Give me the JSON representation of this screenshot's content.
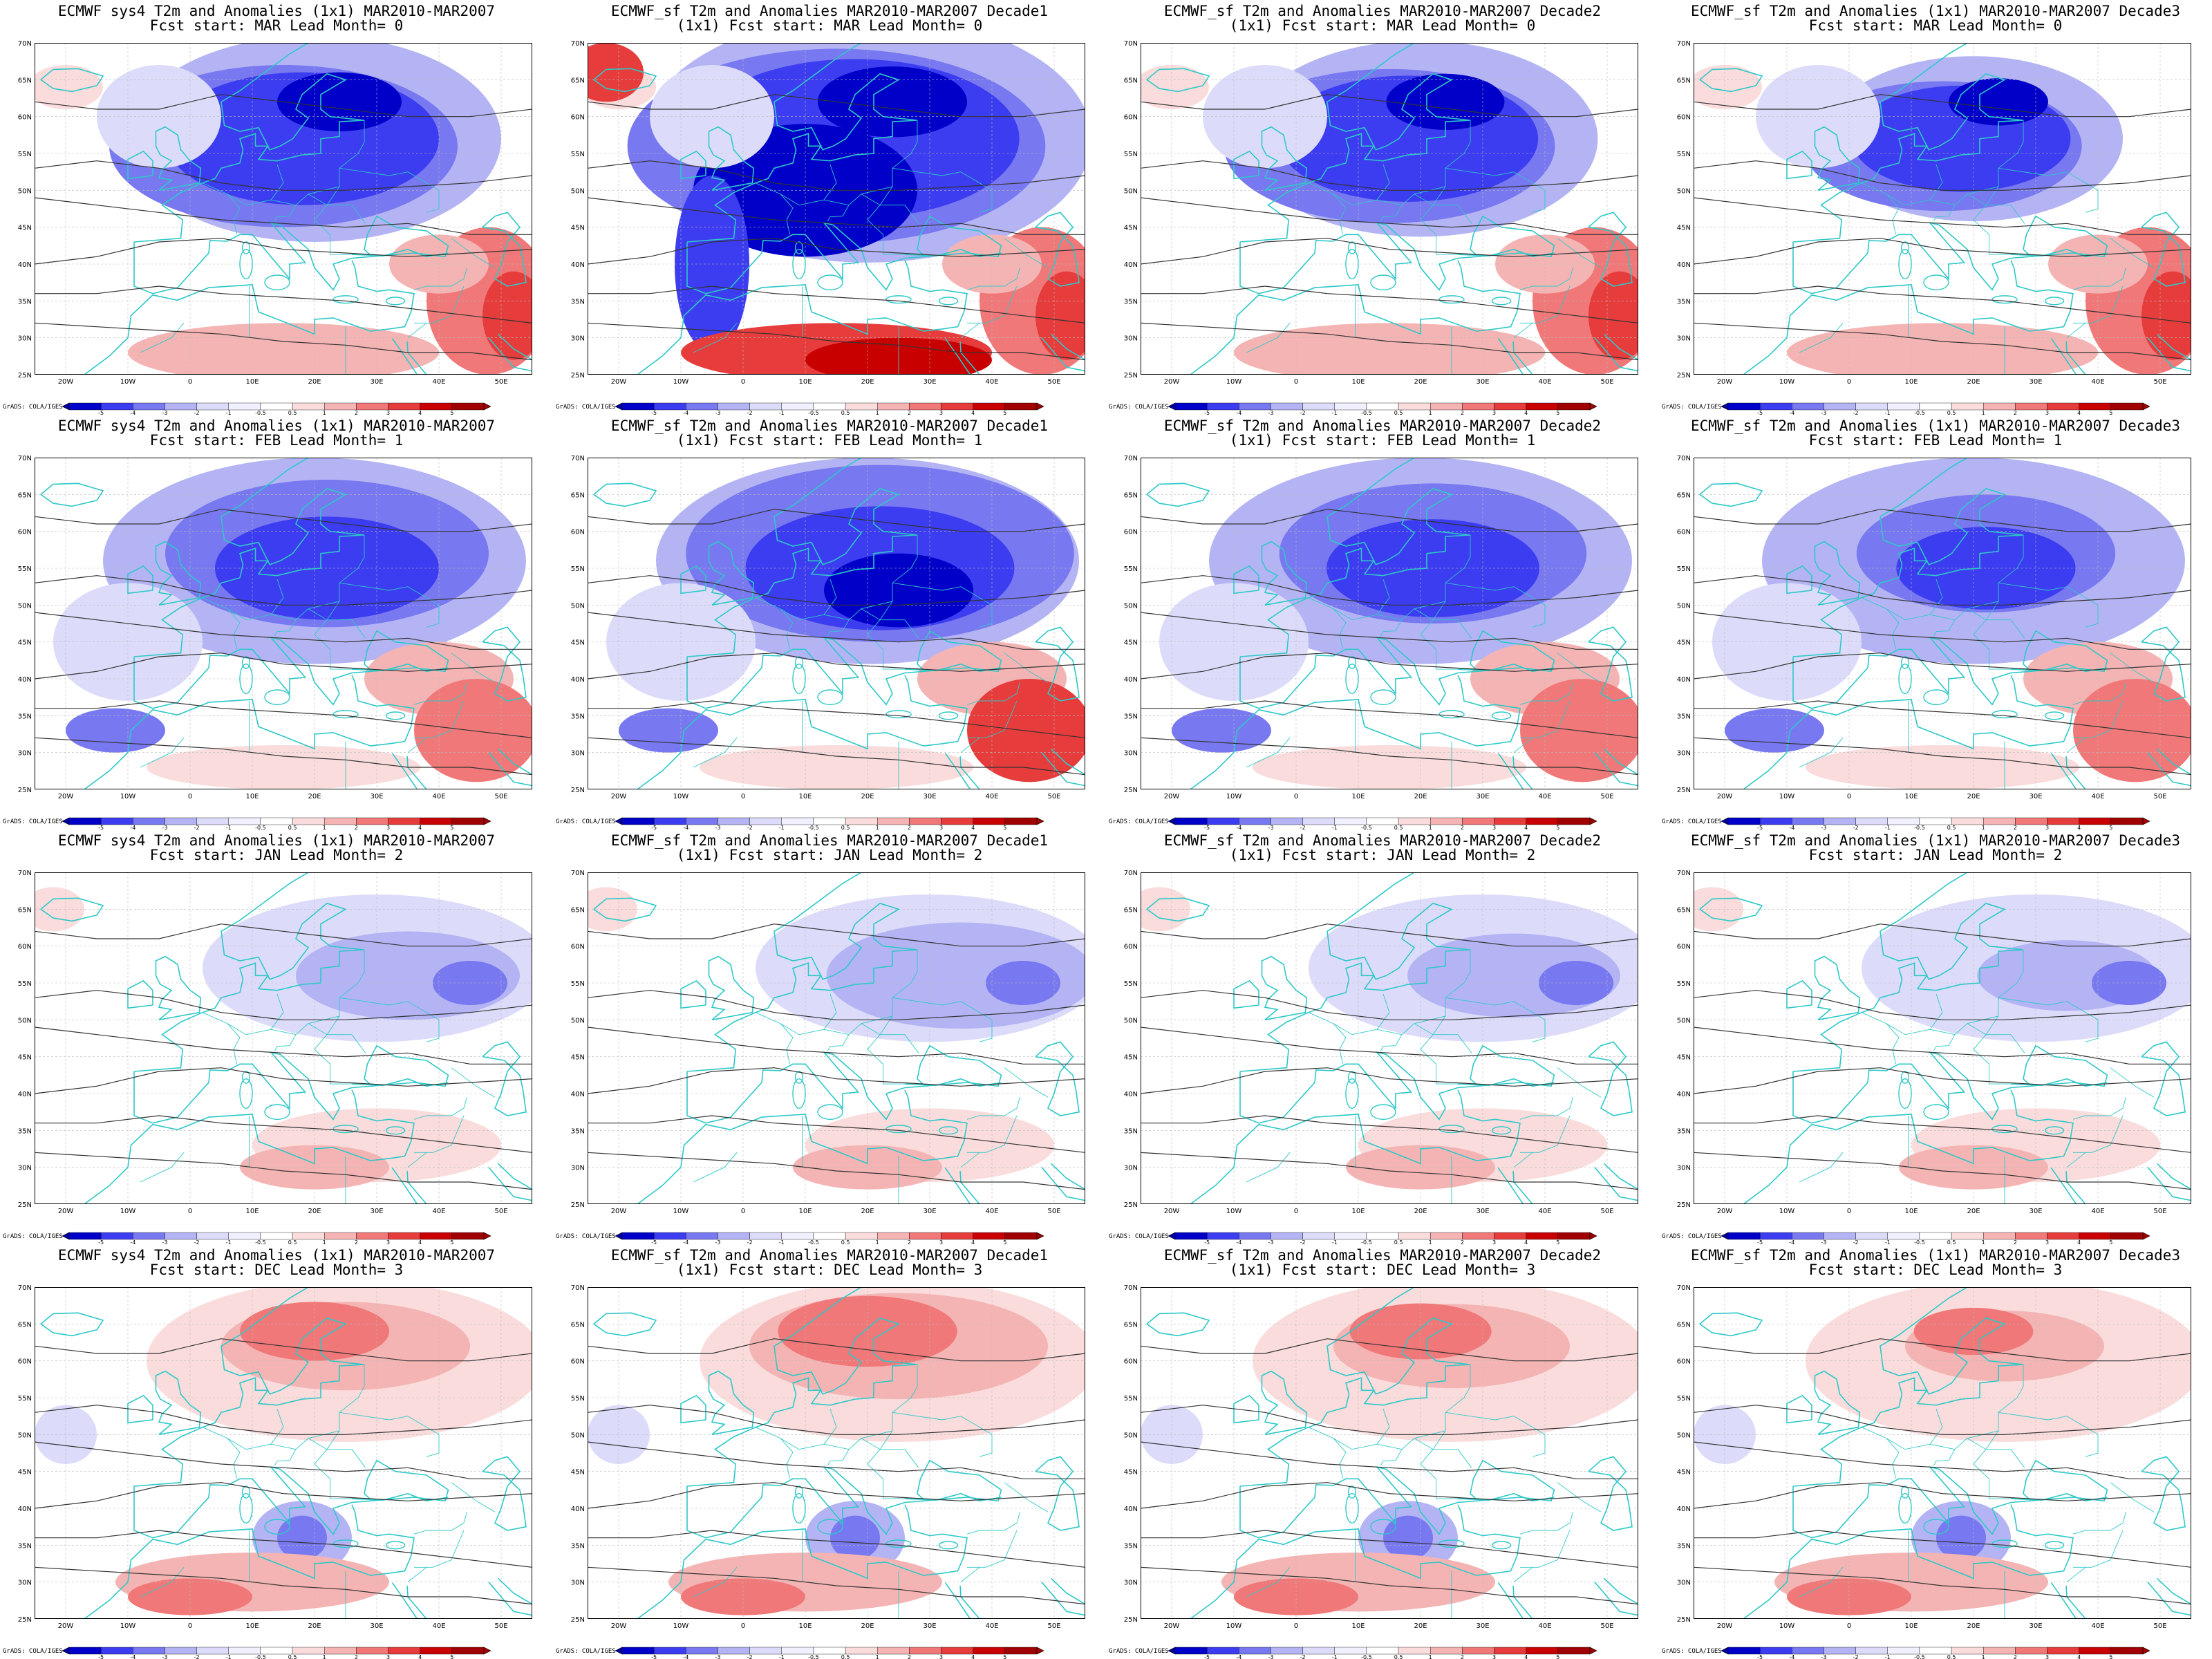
{
  "colors": {
    "strong_cold": "#0000c8",
    "cold": "#3c3cf0",
    "mid_cold": "#7878f0",
    "light_cold": "#b4b4f5",
    "faint_cold": "#dcdcfa",
    "faint_warm": "#fadcdc",
    "light_warm": "#f5b4b4",
    "mid_warm": "#f07878",
    "warm": "#e63c3c",
    "strong_warm": "#c80000",
    "coast": "#2ec8c8",
    "contour": "#333333"
  },
  "colorbar": {
    "labels": [
      "-5",
      "-4",
      "-3",
      "-2",
      "-1",
      "-0.5",
      "0.5",
      "1",
      "2",
      "3",
      "4",
      "5"
    ],
    "credit": "GrADS: COLA/IGES"
  },
  "axes": {
    "lon_ticks": [
      "20W",
      "10W",
      "0",
      "10E",
      "20E",
      "30E",
      "40E",
      "50E"
    ],
    "lat_ticks": [
      "70N",
      "65N",
      "60N",
      "55N",
      "50N",
      "45N",
      "40N",
      "35N",
      "30N",
      "25N"
    ]
  },
  "panels": [
    {
      "title1": "ECMWF sys4 T2m and Anomalies (1x1) MAR2010-MAR2007",
      "title2": "Fcst start: MAR  Lead Month= 0",
      "pattern": 0
    },
    {
      "title1": "ECMWF_sf T2m and Anomalies MAR2010-MAR2007 Decade1",
      "title2": "(1x1) Fcst start: MAR  Lead Month= 0",
      "pattern": 0
    },
    {
      "title1": "ECMWF_sf T2m and Anomalies MAR2010-MAR2007 Decade2",
      "title2": "(1x1) Fcst start: MAR  Lead Month= 0",
      "pattern": 0
    },
    {
      "title1": "ECMWF_sf T2m and Anomalies (1x1) MAR2010-MAR2007 Decade3",
      "title2": "Fcst start: MAR  Lead Month= 0",
      "pattern": 0
    },
    {
      "title1": "ECMWF sys4 T2m and Anomalies (1x1) MAR2010-MAR2007",
      "title2": "Fcst start: FEB  Lead Month= 1",
      "pattern": 1
    },
    {
      "title1": "ECMWF_sf T2m and Anomalies MAR2010-MAR2007 Decade1",
      "title2": "(1x1) Fcst start: FEB  Lead Month= 1",
      "pattern": 1
    },
    {
      "title1": "ECMWF_sf T2m and Anomalies MAR2010-MAR2007 Decade2",
      "title2": "(1x1) Fcst start: FEB  Lead Month= 1",
      "pattern": 1
    },
    {
      "title1": "ECMWF_sf T2m and Anomalies (1x1) MAR2010-MAR2007 Decade3",
      "title2": "Fcst start: FEB  Lead Month= 1",
      "pattern": 1
    },
    {
      "title1": "ECMWF sys4 T2m and Anomalies (1x1) MAR2010-MAR2007",
      "title2": "Fcst start: JAN  Lead Month= 2",
      "pattern": 2
    },
    {
      "title1": "ECMWF_sf T2m and Anomalies MAR2010-MAR2007 Decade1",
      "title2": "(1x1) Fcst start: JAN  Lead Month= 2",
      "pattern": 2
    },
    {
      "title1": "ECMWF_sf T2m and Anomalies MAR2010-MAR2007 Decade2",
      "title2": "(1x1) Fcst start: JAN  Lead Month= 2",
      "pattern": 2
    },
    {
      "title1": "ECMWF_sf T2m and Anomalies (1x1) MAR2010-MAR2007 Decade3",
      "title2": "Fcst start: JAN  Lead Month= 2",
      "pattern": 2
    },
    {
      "title1": "ECMWF sys4 T2m and Anomalies (1x1) MAR2010-MAR2007",
      "title2": "Fcst start: DEC  Lead Month= 3",
      "pattern": 3
    },
    {
      "title1": "ECMWF_sf T2m and Anomalies MAR2010-MAR2007 Decade1",
      "title2": "(1x1) Fcst start: DEC  Lead Month= 3",
      "pattern": 3
    },
    {
      "title1": "ECMWF_sf T2m and Anomalies MAR2010-MAR2007 Decade2",
      "title2": "(1x1) Fcst start: DEC  Lead Month= 3",
      "pattern": 3
    },
    {
      "title1": "ECMWF_sf T2m and Anomalies (1x1) MAR2010-MAR2007 Decade3",
      "title2": "Fcst start: DEC  Lead Month= 3",
      "pattern": 3
    }
  ]
}
